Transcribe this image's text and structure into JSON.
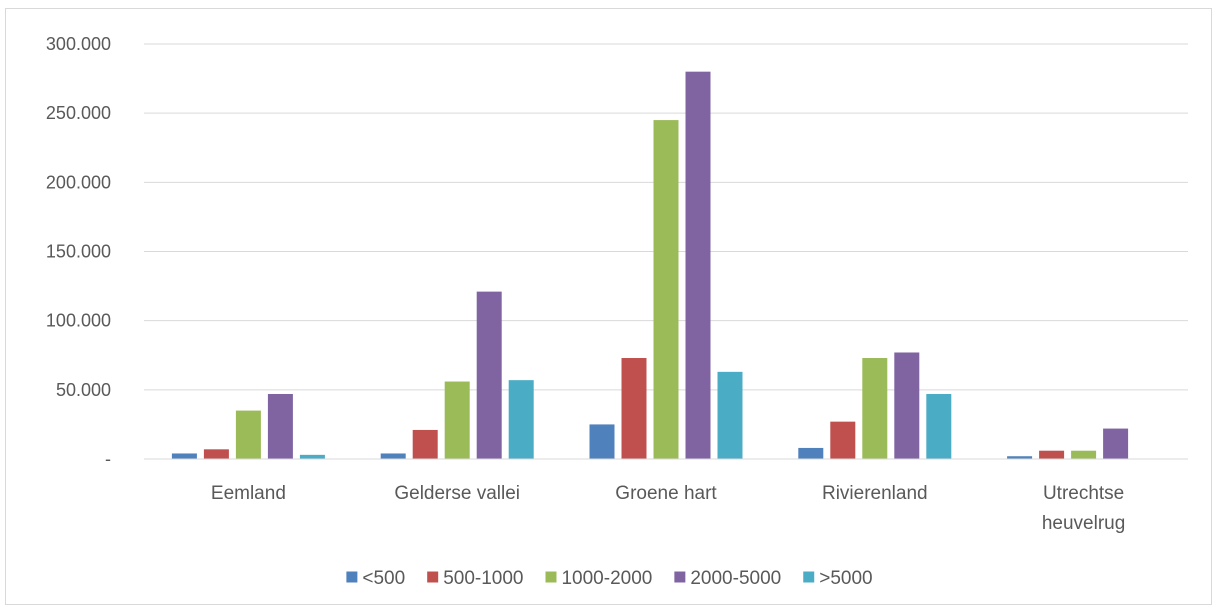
{
  "chart_data": {
    "type": "bar",
    "categories": [
      [
        "Eemland"
      ],
      [
        "Gelderse vallei"
      ],
      [
        "Groene hart"
      ],
      [
        "Rivierenland"
      ],
      [
        "Utrechtse",
        "heuvelrug"
      ]
    ],
    "series": [
      {
        "name": "<500",
        "color": "#4f81bd",
        "values": [
          4000,
          4000,
          25000,
          8000,
          2000
        ]
      },
      {
        "name": "500-1000",
        "color": "#c0504d",
        "values": [
          7000,
          21000,
          73000,
          27000,
          6000
        ]
      },
      {
        "name": "1000-2000",
        "color": "#9bbb59",
        "values": [
          35000,
          56000,
          245000,
          73000,
          6000
        ]
      },
      {
        "name": "2000-5000",
        "color": "#8064a2",
        "values": [
          47000,
          121000,
          280000,
          77000,
          22000
        ]
      },
      {
        "name": ">5000",
        "color": "#4bacc6",
        "values": [
          3000,
          57000,
          63000,
          47000,
          0
        ]
      }
    ],
    "y_ticks": [
      {
        "value": 0,
        "label": "-"
      },
      {
        "value": 50000,
        "label": "50.000"
      },
      {
        "value": 100000,
        "label": "100.000"
      },
      {
        "value": 150000,
        "label": "150.000"
      },
      {
        "value": 200000,
        "label": "200.000"
      },
      {
        "value": 250000,
        "label": "250.000"
      },
      {
        "value": 300000,
        "label": "300.000"
      }
    ],
    "ylim": [
      0,
      300000
    ],
    "grid": true,
    "legend_position": "bottom",
    "gridline_color": "#d9d9d9"
  }
}
